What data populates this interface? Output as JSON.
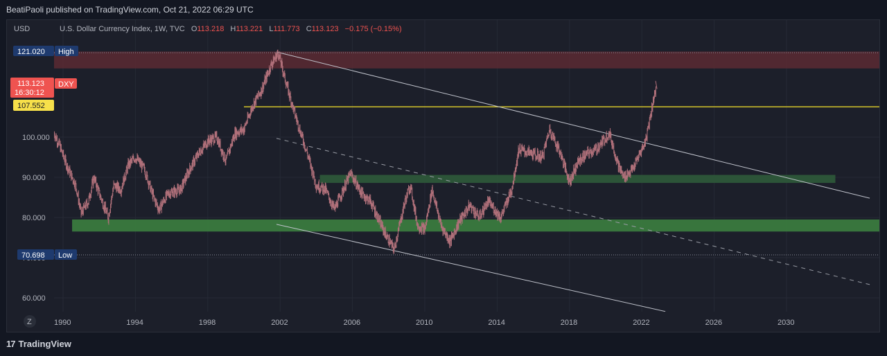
{
  "header": {
    "published": "BeatiPaoli published on TradingView.com, Oct 21, 2022 06:29 UTC"
  },
  "legend": {
    "currency": "USD",
    "symbol": "U.S. Dollar Currency Index, 1W, TVC",
    "open_label": "O",
    "open": "113.218",
    "high_label": "H",
    "high": "113.221",
    "low_label": "L",
    "low": "111.773",
    "close_label": "C",
    "close": "113.123",
    "change": "−0.175 (−0.15%)"
  },
  "price_tags": {
    "high_value": "121.020",
    "high_label": "High",
    "last_value": "113.123",
    "countdown": "16:30:12",
    "symbol_tag": "DXY",
    "level_value": "107.552",
    "low_value": "70.698",
    "low_label": "Low"
  },
  "footer": {
    "brand": "TradingView",
    "z_button": "Z"
  },
  "colors": {
    "background": "#1c1f2a",
    "candle": "#b0707a",
    "yellow_level": "#d4c52a",
    "green_zone": "#3a7a3e",
    "red_zone": "#5a2a32",
    "trendline": "#c0c3cc",
    "last_price_tag": "#ef5350",
    "level_tag": "#f7e04a",
    "axis_tag": "#1e3a6e"
  },
  "chart_data": {
    "type": "line",
    "ylim": [
      55,
      125
    ],
    "xlim": [
      1989.4,
      2034.6
    ],
    "yticks": [
      "60.000",
      "70.000",
      "80.000",
      "90.000",
      "100.000"
    ],
    "xticks": [
      "1990",
      "1994",
      "1998",
      "2002",
      "2006",
      "2010",
      "2014",
      "2018",
      "2022",
      "2026",
      "2030"
    ],
    "series": [
      {
        "values": [
          [
            1989.5,
            101
          ],
          [
            1989.8,
            98
          ],
          [
            1990.2,
            93
          ],
          [
            1990.7,
            88
          ],
          [
            1991.0,
            81
          ],
          [
            1991.4,
            84
          ],
          [
            1991.7,
            90
          ],
          [
            1992.0,
            86
          ],
          [
            1992.5,
            80
          ],
          [
            1992.8,
            88
          ],
          [
            1993.2,
            87
          ],
          [
            1993.6,
            93
          ],
          [
            1994.0,
            95
          ],
          [
            1994.5,
            92
          ],
          [
            1995.0,
            85
          ],
          [
            1995.3,
            82
          ],
          [
            1995.8,
            86
          ],
          [
            1996.5,
            87
          ],
          [
            1997.0,
            92
          ],
          [
            1997.5,
            96
          ],
          [
            1998.0,
            99
          ],
          [
            1998.5,
            100
          ],
          [
            1999.0,
            94
          ],
          [
            1999.5,
            101
          ],
          [
            2000.0,
            102
          ],
          [
            2000.5,
            108
          ],
          [
            2001.0,
            112
          ],
          [
            2001.5,
            118
          ],
          [
            2001.9,
            121
          ],
          [
            2002.3,
            114
          ],
          [
            2002.8,
            106
          ],
          [
            2003.5,
            96
          ],
          [
            2004.0,
            88
          ],
          [
            2004.5,
            87
          ],
          [
            2005.0,
            82
          ],
          [
            2005.5,
            87
          ],
          [
            2005.9,
            91
          ],
          [
            2006.5,
            86
          ],
          [
            2007.0,
            84
          ],
          [
            2007.8,
            76
          ],
          [
            2008.3,
            72
          ],
          [
            2008.9,
            84
          ],
          [
            2009.2,
            88
          ],
          [
            2009.6,
            78
          ],
          [
            2010.0,
            77
          ],
          [
            2010.4,
            87
          ],
          [
            2010.9,
            78
          ],
          [
            2011.4,
            74
          ],
          [
            2011.9,
            79
          ],
          [
            2012.5,
            83
          ],
          [
            2013.0,
            80
          ],
          [
            2013.5,
            84
          ],
          [
            2014.2,
            80
          ],
          [
            2014.8,
            87
          ],
          [
            2015.2,
            97
          ],
          [
            2015.8,
            96
          ],
          [
            2016.5,
            95
          ],
          [
            2016.9,
            102
          ],
          [
            2017.5,
            96
          ],
          [
            2018.0,
            89
          ],
          [
            2018.5,
            94
          ],
          [
            2019.0,
            96
          ],
          [
            2019.5,
            97
          ],
          [
            2020.2,
            101
          ],
          [
            2020.7,
            93
          ],
          [
            2021.0,
            90
          ],
          [
            2021.5,
            92
          ],
          [
            2021.9,
            96
          ],
          [
            2022.2,
            99
          ],
          [
            2022.5,
            106
          ],
          [
            2022.8,
            113
          ]
        ]
      }
    ],
    "levels": [
      {
        "value": 107.552,
        "from": 2000.0
      },
      {
        "value": 121.02
      },
      {
        "value": 70.698
      }
    ],
    "zones": [
      {
        "from_price": 117.1,
        "to_price": 121.3,
        "color": "red"
      },
      {
        "from_price": 88.6,
        "to_price": 90.6,
        "from_year": 2004.2,
        "to_year": 2032.7,
        "color": "green"
      },
      {
        "from_price": 76.5,
        "to_price": 79.5,
        "from_year": 1990.5,
        "color": "green"
      }
    ],
    "trendlines": [
      {
        "points": [
          [
            2001.8,
            121.2
          ],
          [
            2034.6,
            84.8
          ]
        ],
        "style": "solid"
      },
      {
        "points": [
          [
            2001.8,
            99.7
          ],
          [
            2034.6,
            63.3
          ]
        ],
        "style": "dashed"
      },
      {
        "points": [
          [
            2001.8,
            78.3
          ],
          [
            2023.3,
            56.6
          ]
        ],
        "style": "solid"
      }
    ]
  }
}
